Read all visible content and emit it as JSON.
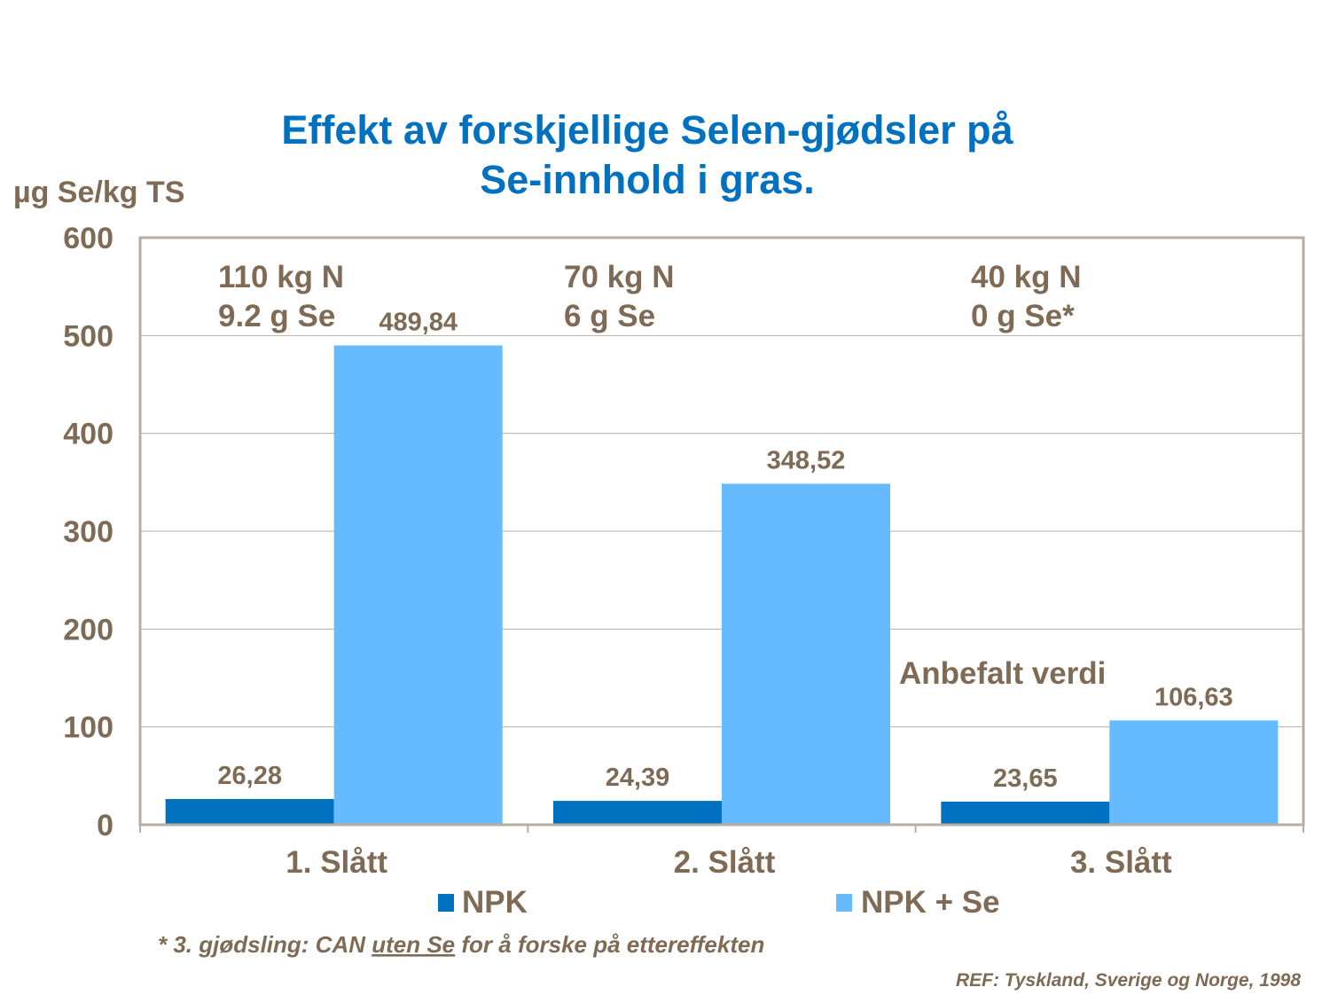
{
  "chart_data": {
    "type": "bar",
    "title": [
      "Effekt av forskjellige Selen-gjødsler på",
      "Se-innhold i gras."
    ],
    "ylabel": "µg Se/kg TS",
    "xlabel": "",
    "ylim": [
      0,
      600
    ],
    "yticks": [
      "0",
      "100",
      "200",
      "300",
      "400",
      "500",
      "600"
    ],
    "grid": true,
    "categories": [
      "1. Slått",
      "2. Slått",
      "3. Slått"
    ],
    "series": [
      {
        "name": "NPK",
        "color": "#0070C0",
        "values": [
          26.28,
          24.39,
          23.65
        ],
        "labels": [
          "26,28",
          "24,39",
          "23,65"
        ]
      },
      {
        "name": "NPK + Se",
        "color": "#66BBFF",
        "values": [
          489.84,
          348.52,
          106.63
        ],
        "labels": [
          "489,84",
          "348,52",
          "106,63"
        ]
      }
    ],
    "legend_placement": "bottom",
    "annotations": {
      "group1": [
        "110 kg N",
        "9.2 g Se"
      ],
      "group2": [
        "70 kg N",
        "6 g Se"
      ],
      "group3": [
        "40 kg N",
        "0 g Se*"
      ],
      "recommended": "Anbefalt verdi"
    }
  },
  "footnote": {
    "prefix": "* 3. gjødsling: CAN ",
    "underlined": "uten Se",
    "suffix": " for å forske på ettereffekten"
  },
  "reference": "REF: Tyskland, Sverige og Norge, 1998",
  "colors": {
    "title": "#0070C0",
    "text": "#7F6B55",
    "axis": "#B8ADA2"
  }
}
